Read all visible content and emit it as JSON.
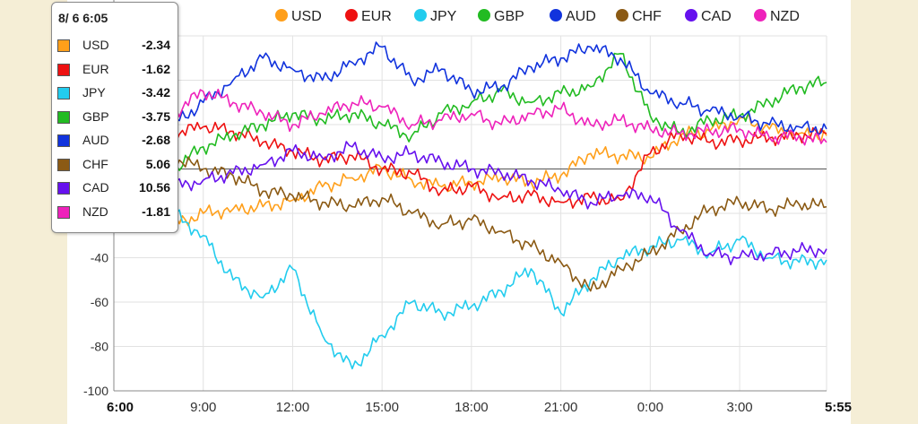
{
  "tooltip": {
    "time": "8/ 6 6:05",
    "rows": [
      {
        "name": "USD",
        "value": "-2.34",
        "color": "#ff9f1a"
      },
      {
        "name": "EUR",
        "value": "-1.62",
        "color": "#ee1111"
      },
      {
        "name": "JPY",
        "value": "-3.42",
        "color": "#22ccee"
      },
      {
        "name": "GBP",
        "value": "-3.75",
        "color": "#22bb22"
      },
      {
        "name": "AUD",
        "value": "-2.68",
        "color": "#1133dd"
      },
      {
        "name": "CHF",
        "value": "5.06",
        "color": "#8b5a14"
      },
      {
        "name": "CAD",
        "value": "10.56",
        "color": "#6611ee"
      },
      {
        "name": "NZD",
        "value": "-1.81",
        "color": "#ee22bb"
      }
    ]
  },
  "chart_data": {
    "type": "line",
    "title": "",
    "xlabel": "",
    "ylabel": "",
    "ylim": [
      -100,
      60
    ],
    "xlim": [
      0,
      1435
    ],
    "y_ticks": [
      -40,
      -60,
      -80,
      -100
    ],
    "x_ticks": [
      {
        "minutes": 0,
        "label": "6:00",
        "bold": true
      },
      {
        "minutes": 180,
        "label": "9:00",
        "bold": false
      },
      {
        "minutes": 360,
        "label": "12:00",
        "bold": false
      },
      {
        "minutes": 540,
        "label": "15:00",
        "bold": false
      },
      {
        "minutes": 720,
        "label": "18:00",
        "bold": false
      },
      {
        "minutes": 900,
        "label": "21:00",
        "bold": false
      },
      {
        "minutes": 1080,
        "label": "0:00",
        "bold": false
      },
      {
        "minutes": 1260,
        "label": "3:00",
        "bold": false
      },
      {
        "minutes": 1435,
        "label": "5:55",
        "bold": true
      }
    ],
    "legend_position": "top",
    "grid": true,
    "series": [
      {
        "name": "USD",
        "color": "#ff9f1a",
        "points": [
          [
            0,
            -23
          ],
          [
            60,
            -22
          ],
          [
            120,
            -25
          ],
          [
            180,
            -20
          ],
          [
            240,
            -18
          ],
          [
            300,
            -17
          ],
          [
            360,
            -14
          ],
          [
            420,
            -8
          ],
          [
            480,
            -4
          ],
          [
            540,
            0
          ],
          [
            600,
            -5
          ],
          [
            660,
            -8
          ],
          [
            720,
            -6
          ],
          [
            780,
            -4
          ],
          [
            840,
            -6
          ],
          [
            900,
            -3
          ],
          [
            960,
            7
          ],
          [
            1020,
            6
          ],
          [
            1080,
            5
          ],
          [
            1140,
            15
          ],
          [
            1200,
            17
          ],
          [
            1260,
            23
          ],
          [
            1320,
            18
          ],
          [
            1380,
            16
          ],
          [
            1435,
            15
          ]
        ]
      },
      {
        "name": "EUR",
        "color": "#ee1111",
        "points": [
          [
            0,
            10
          ],
          [
            60,
            14
          ],
          [
            120,
            16
          ],
          [
            180,
            19
          ],
          [
            240,
            17
          ],
          [
            300,
            12
          ],
          [
            360,
            8
          ],
          [
            420,
            4
          ],
          [
            480,
            6
          ],
          [
            540,
            0
          ],
          [
            600,
            -2
          ],
          [
            660,
            -10
          ],
          [
            720,
            -8
          ],
          [
            780,
            -13
          ],
          [
            840,
            -12
          ],
          [
            900,
            -15
          ],
          [
            960,
            -13
          ],
          [
            1020,
            -14
          ],
          [
            1080,
            7
          ],
          [
            1140,
            16
          ],
          [
            1200,
            12
          ],
          [
            1260,
            13
          ],
          [
            1320,
            14
          ],
          [
            1380,
            15
          ],
          [
            1435,
            16
          ]
        ]
      },
      {
        "name": "JPY",
        "color": "#22ccee",
        "points": [
          [
            0,
            5
          ],
          [
            60,
            12
          ],
          [
            120,
            -20
          ],
          [
            180,
            -30
          ],
          [
            240,
            -50
          ],
          [
            300,
            -58
          ],
          [
            360,
            -45
          ],
          [
            420,
            -75
          ],
          [
            480,
            -90
          ],
          [
            540,
            -75
          ],
          [
            600,
            -60
          ],
          [
            660,
            -65
          ],
          [
            720,
            -62
          ],
          [
            780,
            -55
          ],
          [
            840,
            -45
          ],
          [
            900,
            -65
          ],
          [
            960,
            -50
          ],
          [
            1020,
            -40
          ],
          [
            1080,
            -35
          ],
          [
            1140,
            -32
          ],
          [
            1200,
            -38
          ],
          [
            1260,
            -32
          ],
          [
            1320,
            -40
          ],
          [
            1380,
            -42
          ],
          [
            1435,
            -41
          ]
        ]
      },
      {
        "name": "GBP",
        "color": "#22bb22",
        "points": [
          [
            0,
            -12
          ],
          [
            60,
            -5
          ],
          [
            120,
            0
          ],
          [
            180,
            10
          ],
          [
            240,
            15
          ],
          [
            300,
            20
          ],
          [
            360,
            25
          ],
          [
            420,
            22
          ],
          [
            480,
            25
          ],
          [
            540,
            20
          ],
          [
            600,
            15
          ],
          [
            660,
            25
          ],
          [
            720,
            30
          ],
          [
            780,
            35
          ],
          [
            840,
            30
          ],
          [
            900,
            34
          ],
          [
            960,
            37
          ],
          [
            1020,
            52
          ],
          [
            1080,
            24
          ],
          [
            1140,
            16
          ],
          [
            1200,
            22
          ],
          [
            1260,
            24
          ],
          [
            1320,
            30
          ],
          [
            1380,
            37
          ],
          [
            1435,
            39
          ]
        ]
      },
      {
        "name": "AUD",
        "color": "#1133dd",
        "points": [
          [
            0,
            -2
          ],
          [
            60,
            10
          ],
          [
            120,
            20
          ],
          [
            180,
            30
          ],
          [
            240,
            40
          ],
          [
            300,
            50
          ],
          [
            360,
            45
          ],
          [
            420,
            40
          ],
          [
            480,
            48
          ],
          [
            540,
            55
          ],
          [
            600,
            40
          ],
          [
            660,
            45
          ],
          [
            720,
            35
          ],
          [
            780,
            37
          ],
          [
            840,
            46
          ],
          [
            900,
            50
          ],
          [
            960,
            55
          ],
          [
            1020,
            50
          ],
          [
            1080,
            34
          ],
          [
            1140,
            30
          ],
          [
            1200,
            26
          ],
          [
            1260,
            24
          ],
          [
            1320,
            20
          ],
          [
            1380,
            19
          ],
          [
            1435,
            18
          ]
        ]
      },
      {
        "name": "CHF",
        "color": "#8b5a14",
        "points": [
          [
            0,
            12
          ],
          [
            60,
            8
          ],
          [
            120,
            5
          ],
          [
            180,
            0
          ],
          [
            240,
            -3
          ],
          [
            300,
            -10
          ],
          [
            360,
            -12
          ],
          [
            420,
            -15
          ],
          [
            480,
            -17
          ],
          [
            540,
            -13
          ],
          [
            600,
            -20
          ],
          [
            660,
            -25
          ],
          [
            720,
            -23
          ],
          [
            780,
            -28
          ],
          [
            840,
            -35
          ],
          [
            900,
            -42
          ],
          [
            960,
            -55
          ],
          [
            1020,
            -45
          ],
          [
            1080,
            -38
          ],
          [
            1140,
            -28
          ],
          [
            1200,
            -18
          ],
          [
            1260,
            -15
          ],
          [
            1320,
            -18
          ],
          [
            1380,
            -16
          ],
          [
            1435,
            -17
          ]
        ]
      },
      {
        "name": "CAD",
        "color": "#6611ee",
        "points": [
          [
            0,
            -20
          ],
          [
            60,
            -15
          ],
          [
            120,
            -8
          ],
          [
            180,
            -5
          ],
          [
            240,
            -2
          ],
          [
            300,
            2
          ],
          [
            360,
            8
          ],
          [
            420,
            5
          ],
          [
            480,
            10
          ],
          [
            540,
            5
          ],
          [
            600,
            7
          ],
          [
            660,
            3
          ],
          [
            720,
            0
          ],
          [
            780,
            -2
          ],
          [
            840,
            -5
          ],
          [
            900,
            -10
          ],
          [
            960,
            -15
          ],
          [
            1020,
            -12
          ],
          [
            1080,
            -12
          ],
          [
            1140,
            -28
          ],
          [
            1200,
            -38
          ],
          [
            1260,
            -40
          ],
          [
            1320,
            -38
          ],
          [
            1380,
            -37
          ],
          [
            1435,
            -36
          ]
        ]
      },
      {
        "name": "NZD",
        "color": "#ee22bb",
        "points": [
          [
            0,
            -15
          ],
          [
            60,
            10
          ],
          [
            120,
            25
          ],
          [
            180,
            35
          ],
          [
            240,
            30
          ],
          [
            300,
            25
          ],
          [
            360,
            20
          ],
          [
            420,
            25
          ],
          [
            480,
            30
          ],
          [
            540,
            28
          ],
          [
            600,
            20
          ],
          [
            660,
            22
          ],
          [
            720,
            25
          ],
          [
            780,
            20
          ],
          [
            840,
            25
          ],
          [
            900,
            27
          ],
          [
            960,
            20
          ],
          [
            1020,
            22
          ],
          [
            1080,
            18
          ],
          [
            1140,
            16
          ],
          [
            1200,
            17
          ],
          [
            1260,
            18
          ],
          [
            1320,
            14
          ],
          [
            1380,
            15
          ],
          [
            1435,
            12
          ]
        ]
      }
    ]
  }
}
